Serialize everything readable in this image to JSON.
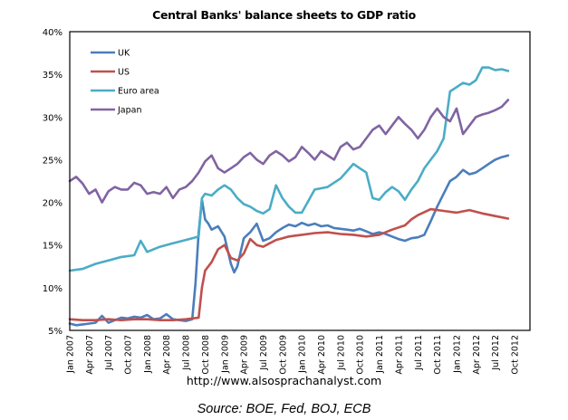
{
  "chart_data": {
    "type": "line",
    "title": "Central Banks' balance sheets to GDP ratio",
    "xlabel": "",
    "ylabel": "",
    "ylim": [
      5,
      40
    ],
    "yticks": [
      "5%",
      "10%",
      "15%",
      "20%",
      "25%",
      "30%",
      "35%",
      "40%"
    ],
    "ytick_values": [
      5,
      10,
      15,
      20,
      25,
      30,
      35,
      40
    ],
    "xtick_labels": [
      "Jan 2007",
      "Apr 2007",
      "Jul 2007",
      "Oct 2007",
      "Jan 2008",
      "Apr 2008",
      "Jul 2008",
      "Oct 2008",
      "Jan 2009",
      "Apr 2009",
      "Jul 2009",
      "Oct 2009",
      "Jan 2010",
      "Apr 2010",
      "Jul 2010",
      "Oct 2010",
      "Jan 2011",
      "Apr 2011",
      "Jul 2011",
      "Oct 2011",
      "Jan 2012",
      "Apr 2012",
      "Jul 2012",
      "Oct 2012"
    ],
    "x_unit": "months since Jan 2007",
    "grid": false,
    "legend_position": "top-left",
    "series": [
      {
        "name": "UK",
        "color": "#4a7ebb",
        "x": [
          0,
          1,
          2,
          3,
          4,
          5,
          6,
          7,
          8,
          9,
          10,
          11,
          12,
          13,
          14,
          15,
          16,
          17,
          18,
          19,
          19.5,
          20,
          20.5,
          21,
          21.5,
          22,
          23,
          24,
          25,
          25.5,
          26,
          27,
          28,
          29,
          30,
          31,
          32,
          33,
          34,
          35,
          36,
          37,
          38,
          39,
          40,
          41,
          42,
          43,
          44,
          45,
          46,
          47,
          48,
          49,
          50,
          51,
          52,
          53,
          54,
          55,
          56,
          57,
          58,
          59,
          60,
          61,
          62,
          63,
          64,
          65,
          66,
          67,
          68
        ],
        "values": [
          5.8,
          5.6,
          5.7,
          5.8,
          5.9,
          6.7,
          5.9,
          6.2,
          6.5,
          6.4,
          6.6,
          6.5,
          6.8,
          6.3,
          6.4,
          6.9,
          6.3,
          6.2,
          6.1,
          6.3,
          10.5,
          16.5,
          20.3,
          18.0,
          17.5,
          16.8,
          17.2,
          16.0,
          12.8,
          11.8,
          12.5,
          15.8,
          16.5,
          17.5,
          15.5,
          15.8,
          16.5,
          17.0,
          17.4,
          17.2,
          17.6,
          17.3,
          17.5,
          17.2,
          17.3,
          17.0,
          16.9,
          16.8,
          16.7,
          16.9,
          16.6,
          16.3,
          16.5,
          16.3,
          16.0,
          15.7,
          15.5,
          15.8,
          15.9,
          16.2,
          17.8,
          19.5,
          21.0,
          22.5,
          23.0,
          23.8,
          23.3,
          23.5,
          24.0,
          24.5,
          25.0,
          25.3,
          25.5
        ]
      },
      {
        "name": "US",
        "color": "#c0504d",
        "x": [
          0,
          2,
          4,
          6,
          8,
          10,
          12,
          14,
          16,
          18,
          20,
          20.5,
          21,
          22,
          23,
          24,
          25,
          26,
          27,
          28,
          29,
          30,
          31,
          32,
          33,
          34,
          35,
          36,
          38,
          40,
          42,
          44,
          46,
          48,
          50,
          52,
          53,
          54,
          56,
          58,
          60,
          62,
          64,
          66,
          68
        ],
        "values": [
          6.3,
          6.2,
          6.2,
          6.3,
          6.2,
          6.3,
          6.3,
          6.2,
          6.2,
          6.3,
          6.5,
          10.0,
          12.0,
          13.0,
          14.5,
          15.0,
          13.5,
          13.2,
          14.0,
          15.7,
          15.0,
          14.8,
          15.2,
          15.6,
          15.8,
          16.0,
          16.1,
          16.2,
          16.4,
          16.5,
          16.3,
          16.2,
          16.0,
          16.2,
          16.8,
          17.3,
          18.0,
          18.5,
          19.2,
          19.0,
          18.8,
          19.1,
          18.7,
          18.4,
          18.1
        ]
      },
      {
        "name": "Euro area",
        "color": "#4bacc6",
        "x": [
          0,
          2,
          4,
          6,
          8,
          10,
          11,
          12,
          13,
          14,
          16,
          18,
          19,
          20,
          20.5,
          21,
          22,
          23,
          24,
          25,
          26,
          27,
          28,
          29,
          30,
          31,
          32,
          33,
          34,
          35,
          36,
          38,
          40,
          42,
          44,
          45,
          46,
          47,
          48,
          49,
          50,
          51,
          52,
          53,
          54,
          55,
          56,
          57,
          58,
          59,
          60,
          61,
          62,
          63,
          64,
          65,
          66,
          67,
          68
        ],
        "values": [
          12.0,
          12.2,
          12.8,
          13.2,
          13.6,
          13.8,
          15.5,
          14.2,
          14.5,
          14.8,
          15.2,
          15.6,
          15.8,
          16.0,
          20.5,
          21.0,
          20.8,
          21.5,
          22.0,
          21.5,
          20.5,
          19.8,
          19.5,
          19.0,
          18.7,
          19.2,
          22.0,
          20.5,
          19.5,
          18.8,
          18.8,
          21.5,
          21.8,
          22.8,
          24.5,
          24.0,
          23.5,
          20.5,
          20.3,
          21.2,
          21.8,
          21.3,
          20.3,
          21.5,
          22.5,
          24.0,
          25.0,
          26.0,
          27.5,
          33.0,
          33.5,
          34.0,
          33.8,
          34.3,
          35.8,
          35.8,
          35.5,
          35.6,
          35.4
        ]
      },
      {
        "name": "Japan",
        "color": "#8064a2",
        "x": [
          0,
          1,
          2,
          3,
          4,
          5,
          6,
          7,
          8,
          9,
          10,
          11,
          12,
          13,
          14,
          15,
          16,
          17,
          18,
          19,
          20,
          21,
          22,
          23,
          24,
          25,
          26,
          27,
          28,
          29,
          30,
          31,
          32,
          33,
          34,
          35,
          36,
          37,
          38,
          39,
          40,
          41,
          42,
          43,
          44,
          45,
          46,
          47,
          48,
          49,
          50,
          51,
          52,
          53,
          54,
          55,
          56,
          57,
          58,
          59,
          60,
          61,
          62,
          63,
          64,
          65,
          66,
          67,
          68
        ],
        "values": [
          22.5,
          23.0,
          22.2,
          21.0,
          21.5,
          20.0,
          21.3,
          21.8,
          21.5,
          21.5,
          22.3,
          22.0,
          21.0,
          21.2,
          21.0,
          21.8,
          20.5,
          21.5,
          21.8,
          22.5,
          23.5,
          24.8,
          25.5,
          24.0,
          23.5,
          24.0,
          24.5,
          25.3,
          25.8,
          25.0,
          24.5,
          25.5,
          26.0,
          25.5,
          24.8,
          25.3,
          26.5,
          25.8,
          25.0,
          26.0,
          25.5,
          25.0,
          26.5,
          27.0,
          26.2,
          26.5,
          27.5,
          28.5,
          29.0,
          28.0,
          29.0,
          30.0,
          29.2,
          28.5,
          27.5,
          28.5,
          30.0,
          31.0,
          30.0,
          29.5,
          31.0,
          28.0,
          29.0,
          30.0,
          30.3,
          30.5,
          30.8,
          31.2,
          32.0
        ]
      }
    ]
  },
  "footer": {
    "url": "http://www.alsosprachanalyst.com",
    "source": "Source: BOE, Fed, BOJ, ECB"
  }
}
